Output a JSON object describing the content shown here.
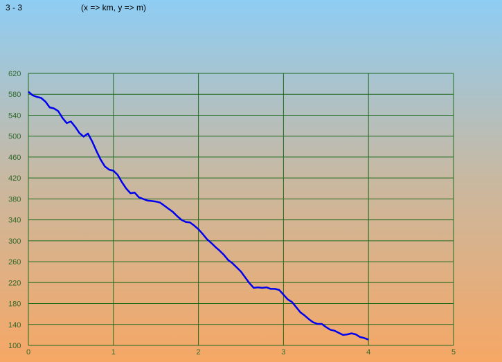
{
  "header": {
    "section": "3 - 3",
    "units": "(x => km, y => m)"
  },
  "colors": {
    "grid": "#1f6b1f",
    "line": "#0000ee",
    "tick_text": "#2f6a2a"
  },
  "chart_data": {
    "type": "line",
    "xlim": [
      0,
      5
    ],
    "ylim": [
      100,
      620
    ],
    "x_ticks": [
      0,
      1,
      2,
      3,
      4,
      5
    ],
    "y_ticks": [
      100,
      140,
      180,
      220,
      260,
      300,
      340,
      380,
      420,
      460,
      500,
      540,
      580,
      620
    ],
    "grid": true,
    "series": [
      {
        "x": [
          0,
          0.05,
          0.1,
          0.15,
          0.2,
          0.25,
          0.3,
          0.35,
          0.4,
          0.45,
          0.5,
          0.55,
          0.6,
          0.65,
          0.7,
          0.75,
          0.8,
          0.85,
          0.9,
          0.95,
          1.0,
          1.05,
          1.1,
          1.15,
          1.2,
          1.25,
          1.3,
          1.35,
          1.4,
          1.45,
          1.5,
          1.55,
          1.6,
          1.65,
          1.7,
          1.75,
          1.8,
          1.85,
          1.9,
          1.95,
          2.0,
          2.05,
          2.1,
          2.15,
          2.2,
          2.25,
          2.3,
          2.35,
          2.4,
          2.45,
          2.5,
          2.55,
          2.6,
          2.65,
          2.7,
          2.75,
          2.8,
          2.85,
          2.9,
          2.95,
          3.0,
          3.05,
          3.1,
          3.15,
          3.2,
          3.25,
          3.3,
          3.35,
          3.4,
          3.45,
          3.5,
          3.55,
          3.6,
          3.65,
          3.7,
          3.75,
          3.8,
          3.85,
          3.9,
          3.95,
          4.0
        ],
        "y": [
          585,
          578,
          575,
          573,
          566,
          555,
          553,
          548,
          535,
          525,
          528,
          518,
          506,
          499,
          505,
          490,
          472,
          455,
          442,
          436,
          434,
          426,
          412,
          400,
          391,
          392,
          383,
          380,
          377,
          376,
          375,
          373,
          367,
          361,
          355,
          347,
          340,
          336,
          335,
          329,
          322,
          313,
          303,
          296,
          288,
          281,
          273,
          263,
          257,
          249,
          241,
          230,
          219,
          210,
          211,
          210,
          211,
          208,
          208,
          206,
          197,
          188,
          183,
          173,
          163,
          157,
          150,
          144,
          141,
          141,
          135,
          130,
          128,
          124,
          120,
          121,
          123,
          121,
          116,
          114,
          111
        ]
      }
    ]
  }
}
